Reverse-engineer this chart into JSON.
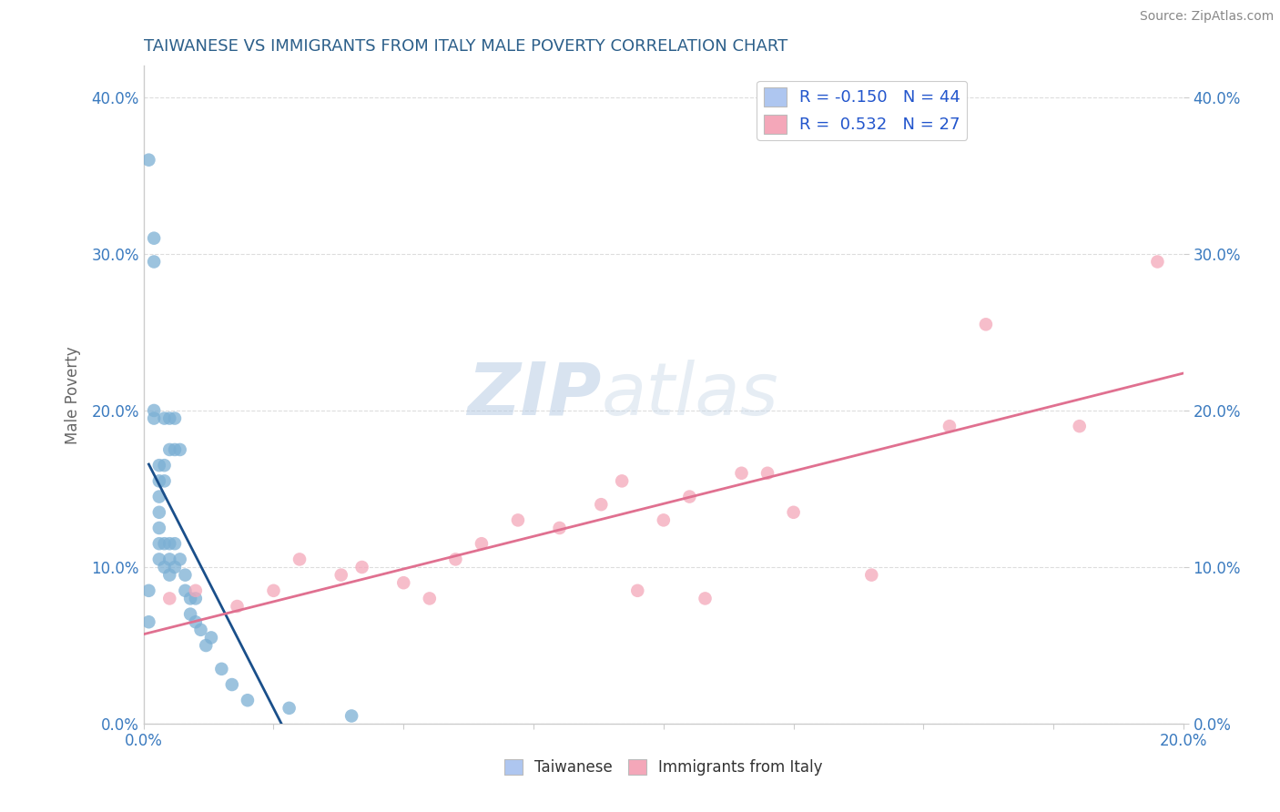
{
  "title": "TAIWANESE VS IMMIGRANTS FROM ITALY MALE POVERTY CORRELATION CHART",
  "source": "Source: ZipAtlas.com",
  "ylabel": "Male Poverty",
  "watermark": "ZIPatlas",
  "legend_entries": [
    {
      "label": "Taiwanese",
      "color": "#aec6f0",
      "R": -0.15,
      "N": 44
    },
    {
      "label": "Immigrants from Italy",
      "color": "#f4a7b9",
      "R": 0.532,
      "N": 27
    }
  ],
  "xmin": 0.0,
  "xmax": 0.2,
  "ymin": 0.0,
  "ymax": 0.42,
  "yticks": [
    0.0,
    0.1,
    0.2,
    0.3,
    0.4
  ],
  "xticks": [
    0.0,
    0.025,
    0.05,
    0.075,
    0.1,
    0.125,
    0.15,
    0.175,
    0.2
  ],
  "title_color": "#2c5f8a",
  "tick_color": "#3a7abf",
  "blue_scatter_color": "#7bafd4",
  "pink_scatter_color": "#f4a7b9",
  "blue_line_color": "#1a4f8a",
  "pink_line_color": "#e07090",
  "taiwanese_x": [
    0.001,
    0.001,
    0.001,
    0.002,
    0.002,
    0.002,
    0.002,
    0.003,
    0.003,
    0.003,
    0.003,
    0.003,
    0.003,
    0.003,
    0.004,
    0.004,
    0.004,
    0.004,
    0.004,
    0.005,
    0.005,
    0.005,
    0.005,
    0.005,
    0.006,
    0.006,
    0.006,
    0.006,
    0.007,
    0.007,
    0.008,
    0.008,
    0.009,
    0.009,
    0.01,
    0.01,
    0.011,
    0.012,
    0.013,
    0.015,
    0.017,
    0.02,
    0.028,
    0.04
  ],
  "taiwanese_y": [
    0.36,
    0.085,
    0.065,
    0.295,
    0.31,
    0.2,
    0.195,
    0.165,
    0.155,
    0.145,
    0.135,
    0.125,
    0.115,
    0.105,
    0.195,
    0.165,
    0.155,
    0.115,
    0.1,
    0.195,
    0.175,
    0.115,
    0.105,
    0.095,
    0.195,
    0.175,
    0.115,
    0.1,
    0.175,
    0.105,
    0.095,
    0.085,
    0.08,
    0.07,
    0.08,
    0.065,
    0.06,
    0.05,
    0.055,
    0.035,
    0.025,
    0.015,
    0.01,
    0.005
  ],
  "italy_x": [
    0.005,
    0.01,
    0.018,
    0.025,
    0.03,
    0.038,
    0.042,
    0.05,
    0.055,
    0.06,
    0.065,
    0.072,
    0.08,
    0.088,
    0.092,
    0.095,
    0.1,
    0.105,
    0.108,
    0.115,
    0.12,
    0.125,
    0.14,
    0.155,
    0.162,
    0.18,
    0.195
  ],
  "italy_y": [
    0.08,
    0.085,
    0.075,
    0.085,
    0.105,
    0.095,
    0.1,
    0.09,
    0.08,
    0.105,
    0.115,
    0.13,
    0.125,
    0.14,
    0.155,
    0.085,
    0.13,
    0.145,
    0.08,
    0.16,
    0.16,
    0.135,
    0.095,
    0.19,
    0.255,
    0.19,
    0.295
  ]
}
